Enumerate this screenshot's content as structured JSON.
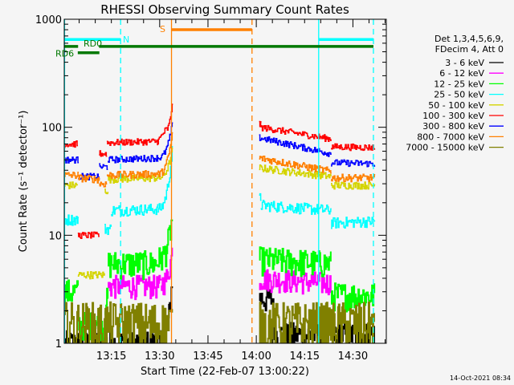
{
  "chart_data": {
    "type": "line",
    "title": "RHESSI Observing Summary Count Rates",
    "xlabel": "Start Time (22-Feb-07 13:00:22)",
    "ylabel": "Count Rate (s⁻¹ detector⁻¹)",
    "x_units": "minutes since 13:00:22",
    "xlim": [
      0,
      100
    ],
    "ylim": [
      1,
      1000
    ],
    "yscale": "log",
    "x_ticks": [
      {
        "t": 14.63,
        "label": "13:15"
      },
      {
        "t": 29.63,
        "label": "13:30"
      },
      {
        "t": 44.63,
        "label": "13:45"
      },
      {
        "t": 59.63,
        "label": "14:00"
      },
      {
        "t": 74.63,
        "label": "14:15"
      },
      {
        "t": 89.63,
        "label": "14:30"
      }
    ],
    "y_ticks": [
      {
        "v": 1,
        "label": "1"
      },
      {
        "v": 10,
        "label": "10"
      },
      {
        "v": 100,
        "label": "100"
      },
      {
        "v": 1000,
        "label": "1000"
      }
    ],
    "legend": {
      "placement": "right",
      "header": [
        "Det 1,3,4,5,6,9,",
        "FDecim 4, Att 0"
      ]
    },
    "series": [
      {
        "name": "3 - 6 keV",
        "color": "#000000",
        "jitter": 0.3,
        "segments": [
          [
            0,
            30,
            1,
            1
          ],
          [
            30,
            33.5,
            1,
            4
          ],
          [
            60.5,
            65,
            2.6,
            2.6
          ],
          [
            65,
            96.4,
            1.2,
            1.2
          ]
        ]
      },
      {
        "name": "6 - 12 keV",
        "color": "#ff00ff",
        "jitter": 0.25,
        "segments": [
          [
            13.5,
            30,
            3.4,
            3.4
          ],
          [
            30,
            33.5,
            3.6,
            7
          ],
          [
            60.5,
            82.8,
            4,
            3.6
          ]
        ]
      },
      {
        "name": "12 - 25 keV",
        "color": "#00ff00",
        "jitter": 0.3,
        "segments": [
          [
            0,
            4.3,
            3,
            3
          ],
          [
            4.3,
            12.5,
            1.5,
            1.5
          ],
          [
            12.5,
            13.5,
            2.5,
            2.5
          ],
          [
            13.5,
            29,
            5.5,
            5.5
          ],
          [
            29,
            33.5,
            6,
            14
          ],
          [
            60.5,
            82.8,
            6,
            5.5
          ],
          [
            82.8,
            96.4,
            2.8,
            2.8
          ]
        ]
      },
      {
        "name": "25 - 50 keV",
        "color": "#00ffff",
        "jitter": 0.12,
        "segments": [
          [
            0,
            4.3,
            14,
            14
          ],
          [
            12.5,
            14.5,
            11.5,
            11.5
          ],
          [
            14.5,
            29,
            17,
            17.5
          ],
          [
            29,
            33.5,
            17.5,
            60
          ],
          [
            60.5,
            61,
            22,
            22
          ],
          [
            61,
            82.8,
            19,
            17
          ],
          [
            82.8,
            96.4,
            13,
            13.5
          ]
        ]
      },
      {
        "name": "50 - 100 keV",
        "color": "#d4d400",
        "jitter": 0.08,
        "segments": [
          [
            0,
            4.2,
            29,
            29
          ],
          [
            4.2,
            12.5,
            4.3,
            4.3
          ],
          [
            12.5,
            13.5,
            26,
            26
          ],
          [
            13.5,
            29,
            33,
            34
          ],
          [
            29,
            33.5,
            34,
            60
          ],
          [
            60.5,
            82.8,
            42,
            35
          ],
          [
            82.8,
            96.4,
            29,
            29
          ]
        ]
      },
      {
        "name": "100 - 300 keV",
        "color": "#ff0000",
        "jitter": 0.07,
        "segments": [
          [
            0,
            4.2,
            70,
            70
          ],
          [
            4.2,
            10.8,
            10,
            10
          ],
          [
            10.8,
            13.2,
            57,
            57
          ],
          [
            13.2,
            29,
            72,
            74
          ],
          [
            29,
            31.5,
            74,
            95
          ],
          [
            31.5,
            33.5,
            95,
            170
          ],
          [
            60.5,
            61,
            107,
            105
          ],
          [
            61,
            82.8,
            100,
            78
          ],
          [
            82.8,
            96.4,
            66,
            65
          ]
        ]
      },
      {
        "name": "300 - 800 keV",
        "color": "#0000ff",
        "jitter": 0.07,
        "segments": [
          [
            0,
            4.3,
            50,
            50
          ],
          [
            4.3,
            10.8,
            35,
            35
          ],
          [
            10.8,
            13.5,
            43,
            43
          ],
          [
            13.5,
            29,
            50,
            52
          ],
          [
            29,
            33.5,
            52,
            105
          ],
          [
            60.5,
            82.8,
            80,
            57
          ],
          [
            82.8,
            96.4,
            47,
            46
          ]
        ]
      },
      {
        "name": "800 - 7000 keV",
        "color": "#ff8000",
        "jitter": 0.08,
        "segments": [
          [
            0,
            4.3,
            36,
            36
          ],
          [
            4.3,
            10.8,
            34,
            33
          ],
          [
            10.8,
            13.2,
            30,
            30
          ],
          [
            13.2,
            29,
            36,
            37
          ],
          [
            29,
            33.5,
            37,
            85
          ],
          [
            60.5,
            82.8,
            52,
            39
          ],
          [
            82.8,
            96.4,
            34,
            34
          ]
        ]
      },
      {
        "name": "7000 - 15000 keV",
        "color": "#808000",
        "jitter": 0.6,
        "segments": [
          [
            0,
            33.5,
            1.5,
            1.5
          ],
          [
            60.5,
            96.4,
            1.5,
            1.5
          ]
        ]
      }
    ],
    "vertical_markers": [
      {
        "t": 0.1,
        "color": "#00ffff",
        "style": "solid"
      },
      {
        "t": 17.5,
        "color": "#00ffff",
        "style": "dashed"
      },
      {
        "t": 33.3,
        "color": "#ff8000",
        "style": "solid"
      },
      {
        "t": 58.3,
        "color": "#ff8000",
        "style": "dashed"
      },
      {
        "t": 79.0,
        "color": "#00ffff",
        "style": "solid"
      },
      {
        "t": 96.0,
        "color": "#00ffff",
        "style": "dashed"
      }
    ],
    "flag_bars": [
      {
        "label": "N",
        "color": "#00ffff",
        "level": 650,
        "intervals": [
          [
            0,
            17.5
          ],
          [
            79,
            96
          ]
        ]
      },
      {
        "label": "S",
        "color": "#ff8000",
        "level": 800,
        "intervals": [
          [
            33.3,
            58.3
          ]
        ]
      },
      {
        "label": "RD0",
        "color": "#007800",
        "level": 560,
        "intervals": [
          [
            0,
            4.3
          ],
          [
            10.8,
            96
          ]
        ]
      },
      {
        "label": "RD6",
        "color": "#007800",
        "level": 490,
        "intervals": [
          [
            4.2,
            10.9
          ]
        ]
      }
    ]
  },
  "footer": {
    "timestamp": "14-Oct-2021 08:34"
  }
}
